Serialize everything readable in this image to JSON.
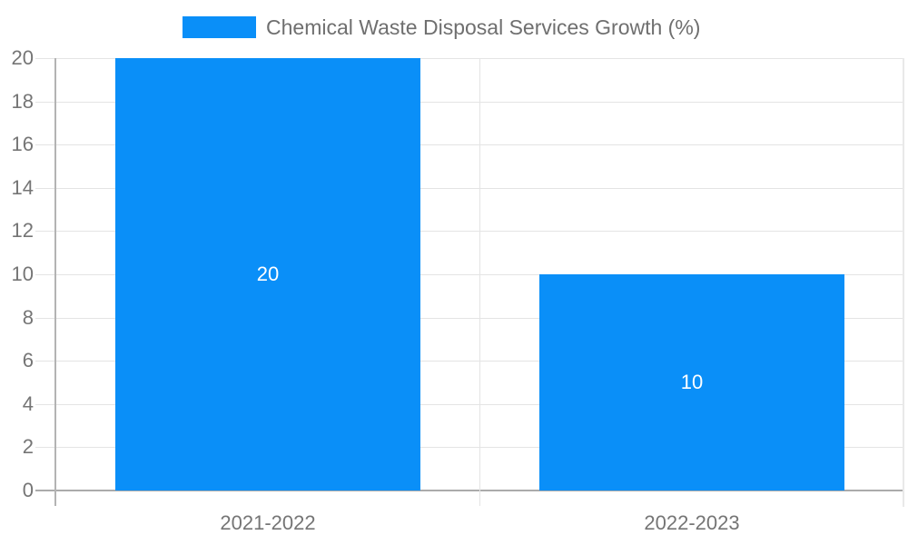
{
  "legend": {
    "label": "Chemical Waste Disposal Services Growth (%)"
  },
  "chart_data": {
    "type": "bar",
    "title": "",
    "xlabel": "",
    "ylabel": "",
    "categories": [
      "2021-2022",
      "2022-2023"
    ],
    "series": [
      {
        "name": "Chemical Waste Disposal Services Growth (%)",
        "values": [
          20,
          10
        ]
      }
    ],
    "data_labels": [
      "20",
      "10"
    ],
    "ylim": [
      0,
      20
    ],
    "ytick_step": 2,
    "ytick_labels": [
      "0",
      "2",
      "4",
      "6",
      "8",
      "10",
      "12",
      "14",
      "16",
      "18",
      "20"
    ],
    "grid": true,
    "legend_position": "top",
    "bar_color": "#0a8ff8",
    "colors": {
      "grid": "#e4e4e4",
      "axis_line": "#b3b3b3",
      "baseline": "#ababab",
      "tick_text": "#757575",
      "legend_text": "#6f6f6f",
      "data_label_text": "#ffffff",
      "background": "#ffffff"
    }
  }
}
